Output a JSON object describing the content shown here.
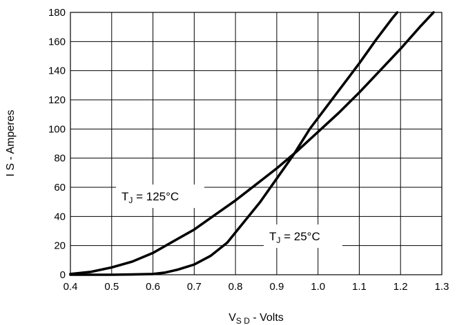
{
  "chart_data": {
    "type": "line",
    "title": "",
    "xlabel_parts": {
      "main": "V",
      "sub": "S D",
      "rest": " - Volts"
    },
    "ylabel": "I S - Amperes",
    "xlim": [
      0.4,
      1.3
    ],
    "ylim": [
      0,
      180
    ],
    "xticks": [
      "0.4",
      "0.5",
      "0.6",
      "0.7",
      "0.8",
      "0.9",
      "1.0",
      "1.1",
      "1.2",
      "1.3"
    ],
    "yticks": [
      "0",
      "20",
      "40",
      "60",
      "80",
      "100",
      "120",
      "140",
      "160",
      "180"
    ],
    "grid": true,
    "series": [
      {
        "name": "T_J = 125°C",
        "x": [
          0.4,
          0.45,
          0.5,
          0.55,
          0.6,
          0.65,
          0.7,
          0.75,
          0.8,
          0.85,
          0.9,
          0.95,
          1.0,
          1.05,
          1.1,
          1.15,
          1.2,
          1.25,
          1.28
        ],
        "y": [
          0.5,
          2,
          5,
          9,
          15,
          23,
          31,
          41,
          51,
          62,
          73,
          85,
          98,
          111,
          125,
          140,
          155,
          171,
          180
        ]
      },
      {
        "name": "T_J = 25°C",
        "x": [
          0.4,
          0.5,
          0.55,
          0.6,
          0.63,
          0.66,
          0.7,
          0.74,
          0.78,
          0.82,
          0.86,
          0.9,
          0.94,
          0.98,
          1.02,
          1.06,
          1.1,
          1.14,
          1.18,
          1.192
        ],
        "y": [
          0,
          0,
          0.2,
          0.5,
          1.5,
          3.5,
          7,
          13,
          22,
          36,
          50,
          66,
          82,
          100,
          115,
          130,
          145,
          161,
          176,
          180
        ]
      }
    ],
    "annotations": [
      {
        "main": "T",
        "sub": "J",
        "rest": " = 125°C",
        "series": 0
      },
      {
        "main": "T",
        "sub": "J",
        "rest": " = 25°C",
        "series": 1
      }
    ]
  }
}
